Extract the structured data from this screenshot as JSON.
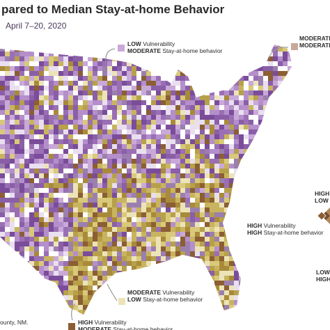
{
  "header": {
    "title": "pared to Median Stay-at-home Behavior",
    "subtitle": "April 7–20, 2020"
  },
  "annotations": [
    {
      "lines": [
        {
          "level": "LOW",
          "rest": "Vulnerability"
        },
        {
          "level": "MODERATE",
          "rest": "Stay-at-home behavior"
        }
      ]
    },
    {
      "lines": [
        {
          "level": "MODERATE",
          "rest": "V"
        },
        {
          "level": "MODERATE",
          "rest": "S"
        }
      ]
    },
    {
      "lines": [
        {
          "level": "HIGH",
          "rest": "V"
        },
        {
          "level": "LOW",
          "rest": "S"
        }
      ]
    },
    {
      "lines": [
        {
          "level": "HIGH",
          "rest": "Vulnerability"
        },
        {
          "level": "HIGH",
          "rest": "Stay-at-home behavior"
        }
      ]
    },
    {
      "lines": [
        {
          "level": "MODERATE",
          "rest": "Vulnerability"
        },
        {
          "level": "LOW",
          "rest": "Stay-at-home behavior"
        }
      ]
    },
    {
      "lines": [
        {
          "level": "HIGH",
          "rest": "Vulnerability"
        },
        {
          "level": "MODERATE",
          "rest": "Stay-at-home behavior"
        }
      ]
    },
    {
      "lines": [
        {
          "level": "LOW",
          "rest": "V"
        },
        {
          "level": "HIGH"
        }
      ]
    }
  ],
  "footnote": "ounty, NM."
}
